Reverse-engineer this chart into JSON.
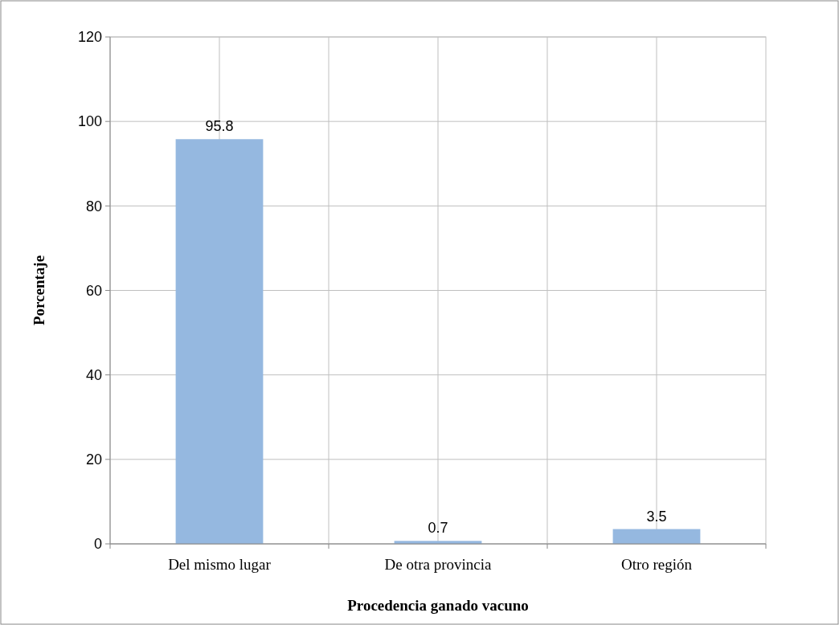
{
  "chart_data": {
    "type": "bar",
    "xlabel": "Procedencia ganado vacuno",
    "ylabel": "Porcentaje",
    "categories": [
      "Del  mismo lugar",
      "De otra provincia",
      "Otro región"
    ],
    "values": [
      95.8,
      0.7,
      3.5
    ],
    "color": "#95b8e0",
    "ylim": [
      0,
      120
    ],
    "yticks": [
      0,
      20,
      40,
      60,
      80,
      100,
      120
    ],
    "grid": true,
    "data_labels": true
  }
}
